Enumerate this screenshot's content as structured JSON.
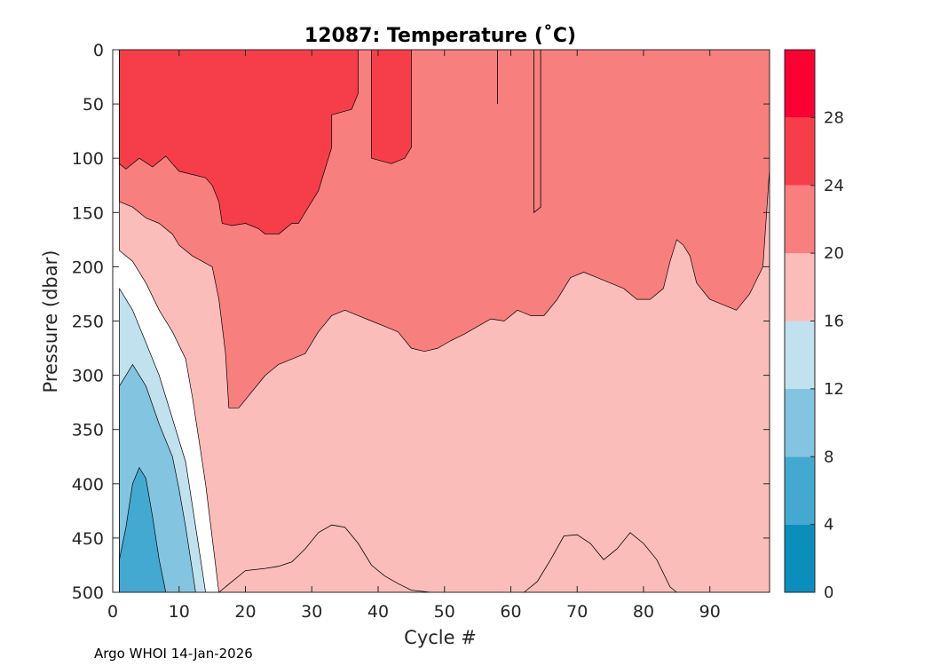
{
  "chart_data": {
    "type": "contour",
    "title": "12087:  Temperature (˚C)",
    "xlabel": "Cycle #",
    "ylabel": "Pressure (dbar)",
    "xlim": [
      0,
      99
    ],
    "ylim": [
      500,
      0
    ],
    "x_ticks": [
      0,
      10,
      20,
      30,
      40,
      50,
      60,
      70,
      80,
      90
    ],
    "y_ticks": [
      0,
      50,
      100,
      150,
      200,
      250,
      300,
      350,
      400,
      450,
      500
    ],
    "colorbar": {
      "levels": [
        0,
        4,
        8,
        12,
        16,
        20,
        24,
        28,
        32
      ],
      "tick_labels": [
        0,
        4,
        8,
        12,
        16,
        20,
        24,
        28
      ],
      "colors": [
        "#0a8fbd",
        "#43a9d0",
        "#83c5e0",
        "#c1e1ee",
        "#fbbdb9",
        "#f77f7e",
        "#f63e4a",
        "#fb0030"
      ]
    },
    "bands": [
      {
        "level": 24,
        "name": "warm-surface-layer",
        "points": [
          [
            1,
            0
          ],
          [
            1,
            105
          ],
          [
            2,
            110
          ],
          [
            4,
            100
          ],
          [
            6,
            108
          ],
          [
            8,
            98
          ],
          [
            10,
            112
          ],
          [
            12,
            115
          ],
          [
            14,
            118
          ],
          [
            15,
            125
          ],
          [
            16,
            140
          ],
          [
            16.5,
            160
          ],
          [
            18,
            162
          ],
          [
            20,
            160
          ],
          [
            22,
            165
          ],
          [
            23,
            170
          ],
          [
            25,
            170
          ],
          [
            27,
            160
          ],
          [
            28,
            160
          ],
          [
            30,
            140
          ],
          [
            31,
            130
          ],
          [
            32,
            110
          ],
          [
            33,
            90
          ],
          [
            33,
            60
          ],
          [
            36,
            55
          ],
          [
            37,
            40
          ],
          [
            37,
            0
          ]
        ]
      },
      {
        "level": 24,
        "name": "warm-surface-patch",
        "points": [
          [
            39,
            0
          ],
          [
            39,
            100
          ],
          [
            42,
            105
          ],
          [
            44,
            100
          ],
          [
            45,
            90
          ],
          [
            45,
            0
          ]
        ]
      },
      {
        "level": 20,
        "name": "warm-thermocline",
        "points": [
          [
            1,
            0
          ],
          [
            1,
            140
          ],
          [
            3,
            145
          ],
          [
            5,
            155
          ],
          [
            7,
            160
          ],
          [
            9,
            170
          ],
          [
            10,
            180
          ],
          [
            12,
            190
          ],
          [
            15,
            200
          ],
          [
            16,
            230
          ],
          [
            17,
            280
          ],
          [
            17.5,
            330
          ],
          [
            19,
            330
          ],
          [
            21,
            315
          ],
          [
            23,
            300
          ],
          [
            25,
            290
          ],
          [
            27,
            285
          ],
          [
            29,
            280
          ],
          [
            31,
            260
          ],
          [
            33,
            245
          ],
          [
            35,
            240
          ],
          [
            37,
            245
          ],
          [
            39,
            250
          ],
          [
            41,
            255
          ],
          [
            43,
            260
          ],
          [
            45,
            275
          ],
          [
            47,
            278
          ],
          [
            49,
            275
          ],
          [
            51,
            268
          ],
          [
            53,
            262
          ],
          [
            55,
            255
          ],
          [
            57,
            248
          ],
          [
            59,
            250
          ],
          [
            61,
            240
          ],
          [
            63,
            245
          ],
          [
            65,
            245
          ],
          [
            67,
            230
          ],
          [
            69,
            210
          ],
          [
            71,
            205
          ],
          [
            73,
            210
          ],
          [
            75,
            215
          ],
          [
            77,
            220
          ],
          [
            79,
            230
          ],
          [
            81,
            230
          ],
          [
            83,
            220
          ],
          [
            84,
            195
          ],
          [
            85,
            175
          ],
          [
            86,
            180
          ],
          [
            87,
            190
          ],
          [
            88,
            215
          ],
          [
            90,
            230
          ],
          [
            92,
            235
          ],
          [
            94,
            240
          ],
          [
            96,
            225
          ],
          [
            98,
            200
          ],
          [
            99,
            110
          ],
          [
            99,
            0
          ]
        ]
      },
      {
        "level": 16,
        "name": "mid-water",
        "points": [
          [
            1,
            0
          ],
          [
            1,
            185
          ],
          [
            3,
            195
          ],
          [
            5,
            215
          ],
          [
            7,
            240
          ],
          [
            9,
            260
          ],
          [
            11,
            285
          ],
          [
            12,
            320
          ],
          [
            13,
            360
          ],
          [
            14,
            400
          ],
          [
            15,
            450
          ],
          [
            16,
            500
          ],
          [
            99,
            500
          ],
          [
            99,
            0
          ]
        ]
      },
      {
        "level": 12,
        "name": "lower-thermocline",
        "points": [
          [
            1,
            220
          ],
          [
            3,
            240
          ],
          [
            5,
            270
          ],
          [
            7,
            300
          ],
          [
            9,
            340
          ],
          [
            11,
            380
          ],
          [
            12,
            420
          ],
          [
            13,
            460
          ],
          [
            14,
            500
          ],
          [
            1,
            500
          ]
        ]
      },
      {
        "level": 8,
        "name": "deep-cool-layer",
        "points": [
          [
            1,
            310
          ],
          [
            3,
            290
          ],
          [
            5,
            310
          ],
          [
            7,
            345
          ],
          [
            9,
            375
          ],
          [
            10,
            405
          ],
          [
            11,
            440
          ],
          [
            12,
            480
          ],
          [
            12.5,
            500
          ],
          [
            1,
            500
          ]
        ]
      },
      {
        "level": 4,
        "name": "deep-cold-core",
        "points": [
          [
            1,
            470
          ],
          [
            2,
            440
          ],
          [
            3,
            400
          ],
          [
            4,
            385
          ],
          [
            5,
            395
          ],
          [
            6,
            430
          ],
          [
            7,
            470
          ],
          [
            8,
            500
          ],
          [
            1,
            500
          ]
        ]
      }
    ],
    "contour_lines": [
      {
        "level": 16,
        "name": "deep-16C-isotherm",
        "points": [
          [
            16,
            500
          ],
          [
            18,
            490
          ],
          [
            20,
            480
          ],
          [
            23,
            478
          ],
          [
            25,
            476
          ],
          [
            27,
            472
          ],
          [
            29,
            460
          ],
          [
            31,
            445
          ],
          [
            33,
            438
          ],
          [
            35,
            440
          ],
          [
            37,
            455
          ],
          [
            39,
            475
          ],
          [
            41,
            485
          ],
          [
            43,
            492
          ],
          [
            45,
            498
          ],
          [
            48,
            500
          ]
        ]
      },
      {
        "level": 16,
        "name": "deep-16C-isotherm-right",
        "points": [
          [
            62,
            500
          ],
          [
            64,
            490
          ],
          [
            66,
            470
          ],
          [
            68,
            448
          ],
          [
            70,
            447
          ],
          [
            72,
            455
          ],
          [
            74,
            470
          ],
          [
            76,
            460
          ],
          [
            78,
            445
          ],
          [
            80,
            455
          ],
          [
            82,
            470
          ],
          [
            84,
            495
          ],
          [
            85,
            500
          ]
        ]
      },
      {
        "level": 24,
        "name": "cycle-58-spike",
        "points": [
          [
            58,
            0
          ],
          [
            58,
            50
          ]
        ]
      },
      {
        "level": 24,
        "name": "cycle-64-spike",
        "points": [
          [
            63.5,
            0
          ],
          [
            63.5,
            150
          ],
          [
            64.5,
            145
          ],
          [
            64.5,
            0
          ]
        ]
      }
    ]
  },
  "footer": {
    "credit": "Argo WHOI 14-Jan-2026"
  }
}
